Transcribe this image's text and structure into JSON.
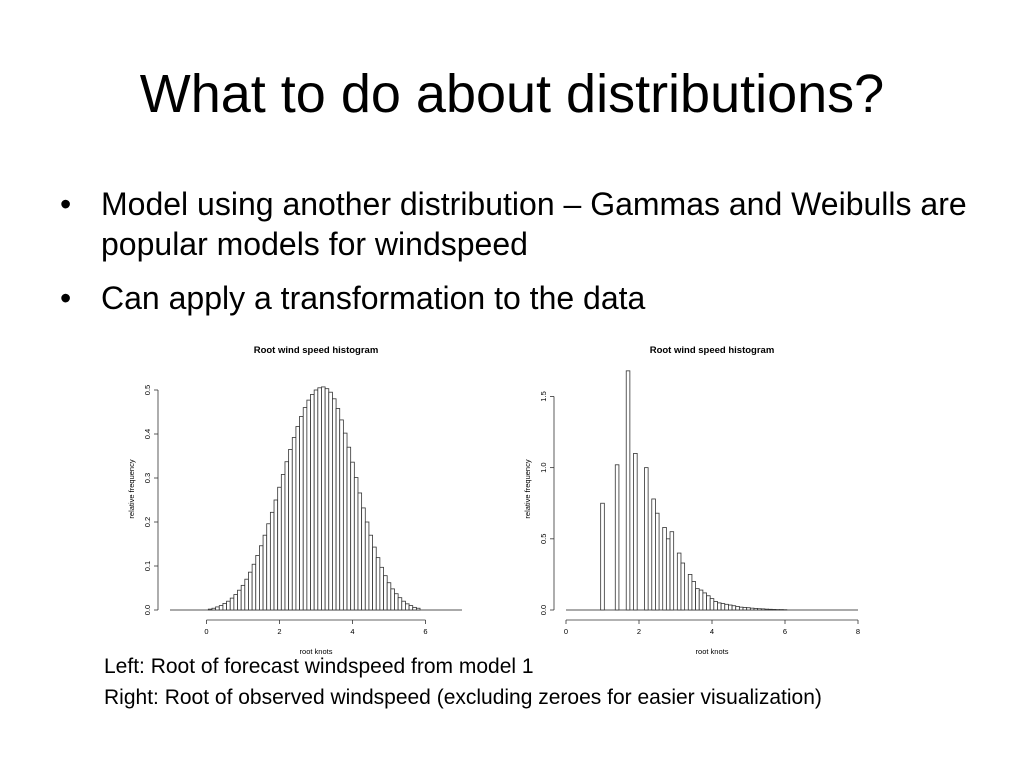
{
  "slide": {
    "title": "What to do about distributions?",
    "bullets": [
      "Model using another distribution – Gammas and Weibulls are popular models for windspeed",
      "Can apply a transformation to the data"
    ],
    "captions": [
      "Left: Root of forecast windspeed from model 1",
      "Right: Root of observed windspeed (excluding zeroes for easier visualization)"
    ]
  },
  "chart_data": [
    {
      "type": "bar",
      "title": "Root wind speed histogram",
      "xlabel": "root knots",
      "ylabel": "relative frequency",
      "xlim": [
        -1,
        7
      ],
      "ylim": [
        0,
        0.55
      ],
      "xticks": [
        0,
        2,
        4,
        6
      ],
      "yticks": [
        0.0,
        0.1,
        0.2,
        0.3,
        0.4,
        0.5
      ],
      "bin_width": 0.1,
      "x": [
        0.1,
        0.2,
        0.3,
        0.4,
        0.5,
        0.6,
        0.7,
        0.8,
        0.9,
        1.0,
        1.1,
        1.2,
        1.3,
        1.4,
        1.5,
        1.6,
        1.7,
        1.8,
        1.9,
        2.0,
        2.1,
        2.2,
        2.3,
        2.4,
        2.5,
        2.6,
        2.7,
        2.8,
        2.9,
        3.0,
        3.1,
        3.2,
        3.3,
        3.4,
        3.5,
        3.6,
        3.7,
        3.8,
        3.9,
        4.0,
        4.1,
        4.2,
        4.3,
        4.4,
        4.5,
        4.6,
        4.7,
        4.8,
        4.9,
        5.0,
        5.1,
        5.2,
        5.3,
        5.4,
        5.5,
        5.6,
        5.7,
        5.8
      ],
      "values": [
        0.002,
        0.004,
        0.007,
        0.01,
        0.015,
        0.02,
        0.027,
        0.035,
        0.045,
        0.056,
        0.07,
        0.086,
        0.104,
        0.124,
        0.146,
        0.17,
        0.196,
        0.222,
        0.25,
        0.279,
        0.308,
        0.337,
        0.365,
        0.392,
        0.417,
        0.44,
        0.46,
        0.477,
        0.49,
        0.5,
        0.505,
        0.507,
        0.503,
        0.495,
        0.48,
        0.458,
        0.432,
        0.402,
        0.37,
        0.336,
        0.301,
        0.266,
        0.232,
        0.2,
        0.17,
        0.143,
        0.119,
        0.097,
        0.078,
        0.062,
        0.048,
        0.037,
        0.028,
        0.02,
        0.014,
        0.01,
        0.006,
        0.004
      ]
    },
    {
      "type": "bar",
      "title": "Root wind speed histogram",
      "xlabel": "root knots",
      "ylabel": "relative frequency",
      "xlim": [
        0,
        8
      ],
      "ylim": [
        0,
        1.7
      ],
      "xticks": [
        0,
        2,
        4,
        6,
        8
      ],
      "yticks": [
        0.0,
        0.5,
        1.0,
        1.5
      ],
      "bin_width": 0.1,
      "x": [
        1.0,
        1.4,
        1.7,
        1.9,
        2.2,
        2.4,
        2.5,
        2.7,
        2.8,
        2.9,
        3.1,
        3.2,
        3.4,
        3.5,
        3.6,
        3.7,
        3.8,
        3.9,
        4.0,
        4.1,
        4.2,
        4.3,
        4.4,
        4.5,
        4.6,
        4.7,
        4.8,
        4.9,
        5.0,
        5.1,
        5.2,
        5.3,
        5.4,
        5.5,
        5.6,
        5.7,
        5.8,
        5.9,
        6.0
      ],
      "values": [
        0.75,
        1.02,
        1.68,
        1.1,
        1.0,
        0.78,
        0.68,
        0.58,
        0.5,
        0.55,
        0.4,
        0.33,
        0.25,
        0.2,
        0.15,
        0.14,
        0.12,
        0.1,
        0.08,
        0.06,
        0.05,
        0.045,
        0.04,
        0.035,
        0.03,
        0.025,
        0.02,
        0.018,
        0.016,
        0.013,
        0.011,
        0.009,
        0.008,
        0.006,
        0.005,
        0.004,
        0.003,
        0.003,
        0.002
      ]
    }
  ]
}
